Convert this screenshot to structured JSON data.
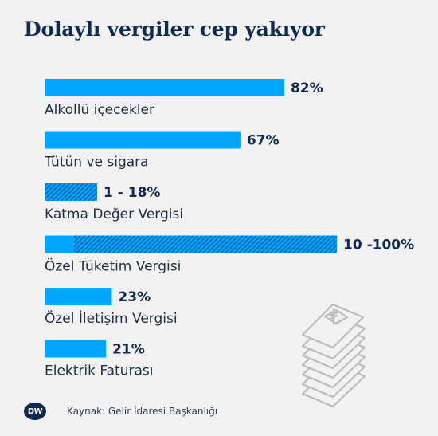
{
  "title": "Dolaylı vergiler cep yakıyor",
  "source": "Kaynak: Gelir İdaresi Başkanlığı",
  "logo_text": "DW",
  "colors": {
    "bar": "#00a5ff",
    "hatch": "#0a4a8a",
    "text": "#0f2a4d",
    "background": "#f2f2f2"
  },
  "chart_data": {
    "type": "bar",
    "orientation": "horizontal",
    "xlim": [
      0,
      100
    ],
    "categories": [
      "Alkollü içecekler",
      "Tütün ve sigara",
      "Katma Değer Vergisi",
      "Özel Tüketim Vergisi",
      "Özel İletişim Vergisi",
      "Elektrik Faturası"
    ],
    "values": [
      {
        "min": 82,
        "max": 82,
        "label": "82%"
      },
      {
        "min": 67,
        "max": 67,
        "label": "67%"
      },
      {
        "min": 1,
        "max": 18,
        "label": "1 - 18%"
      },
      {
        "min": 10,
        "max": 100,
        "label": "10 -100%"
      },
      {
        "min": 23,
        "max": 23,
        "label": "23%"
      },
      {
        "min": 21,
        "max": 21,
        "label": "21%"
      }
    ]
  }
}
